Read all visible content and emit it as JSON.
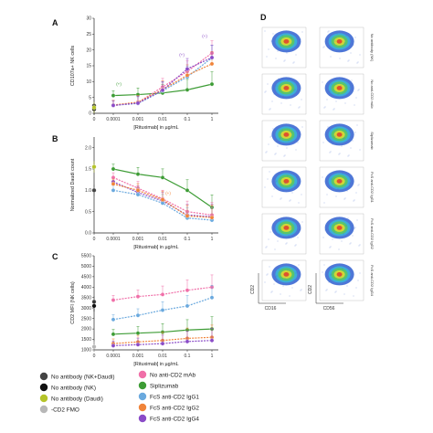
{
  "colors": {
    "NK_Daudi": "#444444",
    "NK": "#111111",
    "Daudi": "#b5c42a",
    "CD2_FMO": "#b7b7b7",
    "No_antiCD2": "#f06fa8",
    "Siplizumab": "#3d9c35",
    "IgG1": "#6aa9de",
    "IgG2": "#f0843a",
    "IgG4": "#8a4bc7"
  },
  "legend": [
    {
      "key": "NK_Daudi",
      "label": "No antibody (NK+Daudi)"
    },
    {
      "key": "NK",
      "label": "No antibody (NK)"
    },
    {
      "key": "Daudi",
      "label": "No antibody (Daudi)"
    },
    {
      "key": "CD2_FMO",
      "label": "-CD2 FMO"
    },
    {
      "key": "No_antiCD2",
      "label": "No anti-CD2 mAb"
    },
    {
      "key": "Siplizumab",
      "label": "Siplizumab"
    },
    {
      "key": "IgG1",
      "label": "FcS anti-CD2 IgG1"
    },
    {
      "key": "IgG2",
      "label": "FcS anti-CD2 IgG2"
    },
    {
      "key": "IgG4",
      "label": "FcS anti-CD2 IgG4"
    }
  ],
  "chart_data": [
    {
      "panel": "A",
      "type": "line",
      "ylabel": "CD107a+ NK cells",
      "xlabel": "[Rituximab] in µg/mL",
      "x_ticks": [
        "0",
        "0.0001",
        "0.001",
        "0.01",
        "0.1",
        "1"
      ],
      "y_ticks": [
        0,
        5,
        10,
        15,
        20,
        25,
        30
      ],
      "ylim": [
        0,
        30
      ],
      "zero_points": [
        {
          "key": "NK_Daudi",
          "y": 2.4
        },
        {
          "key": "NK",
          "y": 1.3
        },
        {
          "key": "Daudi",
          "y": 1.8
        }
      ],
      "series": [
        {
          "key": "Siplizumab",
          "x": [
            "0.0001",
            "0.001",
            "0.01",
            "0.1",
            "1"
          ],
          "values": [
            5.6,
            5.9,
            6.4,
            7.4,
            9.2
          ]
        },
        {
          "key": "No_antiCD2",
          "x": [
            "0.0001",
            "0.001",
            "0.01",
            "0.1",
            "1"
          ],
          "values": [
            2.4,
            3.4,
            8.3,
            13.2,
            19.0
          ]
        },
        {
          "key": "IgG1",
          "x": [
            "0.0001",
            "0.001",
            "0.01",
            "0.1",
            "1"
          ],
          "values": [
            2.5,
            3.1,
            7.1,
            11.5,
            17.5
          ]
        },
        {
          "key": "IgG2",
          "x": [
            "0.0001",
            "0.001",
            "0.01",
            "0.1",
            "1"
          ],
          "values": [
            2.6,
            3.5,
            7.5,
            12.0,
            15.6
          ]
        },
        {
          "key": "IgG4",
          "x": [
            "0.0001",
            "0.001",
            "0.01",
            "0.1",
            "1"
          ],
          "values": [
            2.5,
            3.2,
            7.3,
            14.0,
            17.6
          ]
        }
      ],
      "annotations": [
        "(+)",
        "(+)",
        "(+)"
      ]
    },
    {
      "panel": "B",
      "type": "line",
      "ylabel": "Normalized Daudi count",
      "xlabel": "[Rituximab] in µg/mL",
      "x_ticks": [
        "0",
        "0.0001",
        "0.001",
        "0.01",
        "0.1",
        "1"
      ],
      "y_ticks": [
        0.0,
        0.5,
        1.0,
        1.5,
        2.0
      ],
      "ylim": [
        0,
        2.25
      ],
      "zero_points": [
        {
          "key": "Daudi",
          "y": 1.55
        },
        {
          "key": "NK_Daudi",
          "y": 1.0
        }
      ],
      "series": [
        {
          "key": "Siplizumab",
          "x": [
            "0.0001",
            "0.001",
            "0.01",
            "0.1",
            "1"
          ],
          "values": [
            1.5,
            1.38,
            1.3,
            1.0,
            0.6
          ]
        },
        {
          "key": "IgG4",
          "x": [
            "0.0001",
            "0.001",
            "0.01",
            "0.1",
            "1"
          ],
          "values": [
            1.2,
            0.95,
            0.75,
            0.42,
            0.38
          ]
        },
        {
          "key": "No_antiCD2",
          "x": [
            "0.0001",
            "0.001",
            "0.01",
            "0.1",
            "1"
          ],
          "values": [
            1.3,
            1.05,
            0.8,
            0.5,
            0.42
          ]
        },
        {
          "key": "IgG1",
          "x": [
            "0.0001",
            "0.001",
            "0.01",
            "0.1",
            "1"
          ],
          "values": [
            1.0,
            0.9,
            0.7,
            0.35,
            0.3
          ]
        },
        {
          "key": "IgG2",
          "x": [
            "0.0001",
            "0.001",
            "0.01",
            "0.1",
            "1"
          ],
          "values": [
            1.15,
            1.0,
            0.78,
            0.4,
            0.36
          ]
        }
      ],
      "annotations": [
        "(+)"
      ]
    },
    {
      "panel": "C",
      "type": "line",
      "ylabel": "CD2 MFI (NK cells)",
      "xlabel": "[Rituximab] in µg/mL",
      "x_ticks": [
        "0",
        "0.0001",
        "0.001",
        "0.01",
        "0.1",
        "1"
      ],
      "y_ticks": [
        1000,
        1500,
        2000,
        2500,
        3000,
        3500,
        4000,
        4500,
        5000,
        5500
      ],
      "ylim": [
        1000,
        5500
      ],
      "zero_points": [
        {
          "key": "NK_Daudi",
          "y": 3300
        },
        {
          "key": "NK",
          "y": 3100
        },
        {
          "key": "CD2_FMO",
          "y": 1150
        }
      ],
      "series": [
        {
          "key": "No_antiCD2",
          "x": [
            "0.0001",
            "0.001",
            "0.01",
            "0.1",
            "1"
          ],
          "values": [
            3380,
            3550,
            3650,
            3850,
            4000
          ]
        },
        {
          "key": "IgG1",
          "x": [
            "0.0001",
            "0.001",
            "0.01",
            "0.1",
            "1"
          ],
          "values": [
            2450,
            2650,
            2900,
            3100,
            3500
          ]
        },
        {
          "key": "Siplizumab",
          "x": [
            "0.0001",
            "0.001",
            "0.01",
            "0.1",
            "1"
          ],
          "values": [
            1750,
            1800,
            1850,
            1950,
            2000
          ]
        },
        {
          "key": "IgG2",
          "x": [
            "0.0001",
            "0.001",
            "0.01",
            "0.1",
            "1"
          ],
          "values": [
            1300,
            1380,
            1450,
            1550,
            1600
          ]
        },
        {
          "key": "IgG4",
          "x": [
            "0.0001",
            "0.001",
            "0.01",
            "0.1",
            "1"
          ],
          "values": [
            1200,
            1250,
            1300,
            1400,
            1450
          ]
        }
      ],
      "annotations": []
    },
    {
      "panel": "D",
      "type": "heatmap",
      "rows": 6,
      "columns": 2,
      "x_axis_labels": [
        "CD16",
        "CD56"
      ],
      "y_axis_labels": [
        "CD2",
        "CD2"
      ],
      "row_labels": [
        "No antibody (NK)",
        "No anti-CD2 mAb",
        "Siplizumab",
        "FcS anti-CD2 IgG1",
        "FcS anti-CD2 IgG2",
        "FcS anti-CD2 IgG4"
      ]
    }
  ]
}
